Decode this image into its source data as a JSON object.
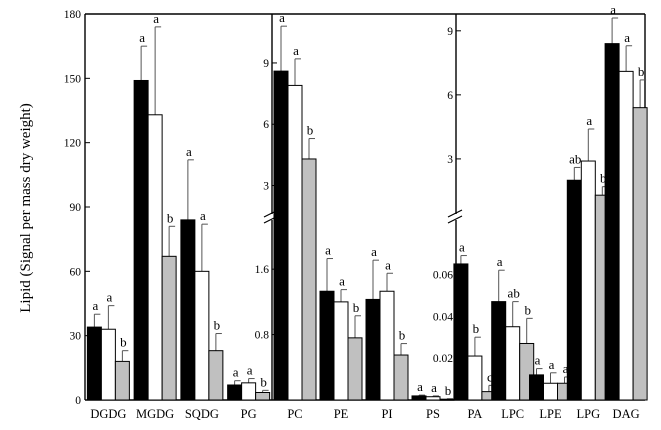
{
  "chart_data": {
    "type": "bar",
    "ylabel": "Lipid (Signal per mass dry weight)",
    "series_colors": [
      "#000000",
      "#ffffff",
      "#c0c0c0"
    ],
    "panels": [
      {
        "axis": "single",
        "yticks": [
          0,
          30,
          60,
          90,
          120,
          150,
          180
        ],
        "ylim": [
          0,
          180
        ],
        "groups": [
          {
            "category": "DGDG",
            "values": [
              34,
              33,
              18
            ],
            "errors": [
              6,
              11,
              5
            ],
            "letters": [
              "a",
              "a",
              "b"
            ]
          },
          {
            "category": "MGDG",
            "values": [
              149,
              133,
              67
            ],
            "errors": [
              16,
              41,
              14
            ],
            "letters": [
              "a",
              "a",
              "b"
            ]
          },
          {
            "category": "SQDG",
            "values": [
              84,
              60,
              23
            ],
            "errors": [
              28,
              22,
              8
            ],
            "letters": [
              "a",
              "a",
              "b"
            ]
          },
          {
            "category": "PG",
            "values": [
              7,
              8,
              3.5
            ],
            "errors": [
              2,
              2,
              1
            ],
            "letters": [
              "a",
              "a",
              "b"
            ]
          }
        ]
      },
      {
        "axis": "broken",
        "upper": {
          "yticks": [
            3,
            6,
            9
          ],
          "ylim": [
            1.9,
            11.2
          ]
        },
        "lower": {
          "yticks": [
            0.8,
            1.6
          ],
          "ylim": [
            0,
            1.92
          ]
        },
        "groups": [
          {
            "category": "PC",
            "values": [
              8.6,
              7.9,
              4.3
            ],
            "errors": [
              2.2,
              1.3,
              1.0
            ],
            "letters": [
              "a",
              "a",
              "b"
            ]
          },
          {
            "category": "PE",
            "values": [
              1.33,
              1.2,
              0.76
            ],
            "errors": [
              0.4,
              0.15,
              0.27
            ],
            "letters": [
              "a",
              "a",
              "b"
            ]
          },
          {
            "category": "PI",
            "values": [
              1.23,
              1.33,
              0.55
            ],
            "errors": [
              0.48,
              0.22,
              0.14
            ],
            "letters": [
              "a",
              "a",
              "b"
            ]
          },
          {
            "category": "PS",
            "values": [
              0.05,
              0.04,
              0.01
            ],
            "errors": [
              0.01,
              0.01,
              0.005
            ],
            "letters": [
              "a",
              "a",
              "b"
            ]
          }
        ]
      },
      {
        "axis": "broken",
        "upper": {
          "yticks": [
            3,
            6,
            9
          ],
          "ylim": [
            0.7,
            9.6
          ]
        },
        "lower": {
          "yticks": [
            0.02,
            0.04,
            0.06
          ],
          "ylim": [
            0,
            0.075
          ]
        },
        "groups": [
          {
            "category": "PA",
            "values": [
              0.065,
              0.021,
              0.004
            ],
            "errors": [
              0.004,
              0.009,
              0.003
            ],
            "letters": [
              "a",
              "b",
              "c"
            ]
          },
          {
            "category": "LPC",
            "values": [
              0.047,
              0.035,
              0.027
            ],
            "errors": [
              0.015,
              0.012,
              0.012
            ],
            "letters": [
              "a",
              "ab",
              "b"
            ]
          },
          {
            "category": "LPE",
            "values": [
              0.012,
              0.008,
              0.008
            ],
            "errors": [
              0.003,
              0.005,
              0.003
            ],
            "letters": [
              "a",
              "a",
              "a"
            ]
          },
          {
            "category": "LPG",
            "values": [
              2.0,
              2.9,
              1.3
            ],
            "errors": [
              0.6,
              1.5,
              0.4
            ],
            "letters": [
              "ab",
              "a",
              "b"
            ]
          },
          {
            "category": "DAG",
            "values": [
              8.4,
              7.1,
              5.4
            ],
            "errors": [
              1.2,
              1.2,
              1.3
            ],
            "letters": [
              "a",
              "a",
              "b"
            ]
          }
        ]
      }
    ]
  }
}
